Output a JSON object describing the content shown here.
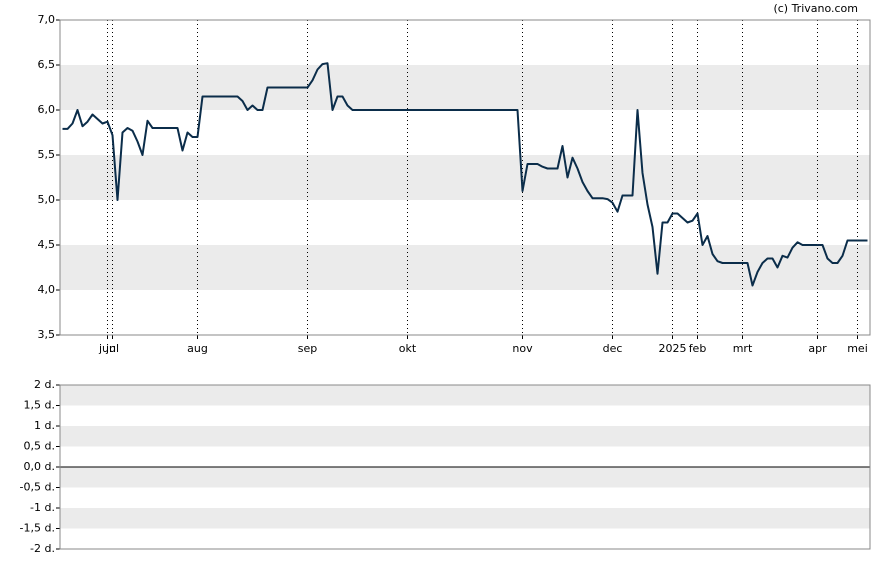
{
  "chart_data": [
    {
      "type": "line",
      "source": "(c) Trivano.com",
      "categories": [
        null,
        null,
        null,
        null,
        null,
        null,
        null,
        null,
        null,
        "jun",
        "jul",
        null,
        null,
        null,
        null,
        null,
        null,
        null,
        null,
        null,
        null,
        null,
        null,
        null,
        null,
        null,
        null,
        "aug",
        null,
        null,
        null,
        null,
        null,
        null,
        null,
        null,
        null,
        null,
        null,
        null,
        null,
        null,
        null,
        null,
        null,
        null,
        null,
        null,
        null,
        "sep",
        null,
        null,
        null,
        null,
        null,
        null,
        null,
        null,
        null,
        null,
        null,
        null,
        null,
        null,
        null,
        null,
        null,
        null,
        null,
        "okt",
        null,
        null,
        null,
        null,
        null,
        null,
        null,
        null,
        null,
        null,
        null,
        null,
        null,
        null,
        null,
        null,
        null,
        null,
        null,
        null,
        null,
        null,
        "nov",
        null,
        null,
        null,
        null,
        null,
        null,
        null,
        null,
        null,
        null,
        null,
        null,
        null,
        null,
        null,
        null,
        null,
        "dec",
        null,
        null,
        null,
        null,
        null,
        null,
        null,
        null,
        null,
        null,
        null,
        "2025",
        null,
        null,
        null,
        null,
        "feb",
        null,
        null,
        null,
        null,
        null,
        null,
        null,
        null,
        "mrt",
        null,
        null,
        null,
        null,
        null,
        null,
        null,
        null,
        null,
        null,
        null,
        null,
        null,
        null,
        "apr",
        null,
        null,
        null,
        null,
        null,
        null,
        null,
        "mei",
        null,
        null
      ],
      "series": [
        {
          "color": "#0b2d4a",
          "values": [
            5.79,
            5.79,
            5.85,
            6.0,
            5.82,
            5.87,
            5.95,
            5.9,
            5.85,
            5.87,
            5.72,
            5.0,
            5.75,
            5.8,
            5.77,
            5.65,
            5.5,
            5.88,
            5.8,
            5.8,
            5.8,
            5.8,
            5.8,
            5.8,
            5.55,
            5.75,
            5.7,
            5.7,
            6.15,
            6.15,
            6.15,
            6.15,
            6.15,
            6.15,
            6.15,
            6.15,
            6.1,
            6.0,
            6.05,
            6.0,
            6.0,
            6.25,
            6.25,
            6.25,
            6.25,
            6.25,
            6.25,
            6.25,
            6.25,
            6.25,
            6.33,
            6.45,
            6.51,
            6.52,
            6.0,
            6.15,
            6.15,
            6.05,
            6.0,
            6.0,
            6.0,
            6.0,
            6.0,
            6.0,
            6.0,
            6.0,
            6.0,
            6.0,
            6.0,
            6.0,
            6.0,
            6.0,
            6.0,
            6.0,
            6.0,
            6.0,
            6.0,
            6.0,
            6.0,
            6.0,
            6.0,
            6.0,
            6.0,
            6.0,
            6.0,
            6.0,
            6.0,
            6.0,
            6.0,
            6.0,
            6.0,
            6.0,
            5.1,
            5.4,
            5.4,
            5.4,
            5.37,
            5.35,
            5.35,
            5.35,
            5.6,
            5.25,
            5.47,
            5.35,
            5.2,
            5.1,
            5.02,
            5.02,
            5.02,
            5.01,
            4.97,
            4.87,
            5.05,
            5.05,
            5.05,
            6.0,
            5.3,
            4.95,
            4.7,
            4.18,
            4.75,
            4.75,
            4.85,
            4.85,
            4.8,
            4.75,
            4.77,
            4.85,
            4.5,
            4.6,
            4.4,
            4.32,
            4.3,
            4.3,
            4.3,
            4.3,
            4.3,
            4.3,
            4.05,
            4.2,
            4.3,
            4.35,
            4.35,
            4.25,
            4.38,
            4.36,
            4.47,
            4.53,
            4.5,
            4.5,
            4.5,
            4.5,
            4.5,
            4.35,
            4.3,
            4.3,
            4.38,
            4.55,
            4.55,
            4.55,
            4.55,
            4.55
          ]
        }
      ],
      "ylim": [
        3.5,
        7.0
      ],
      "yticks": [
        {
          "value": 3.5,
          "label": "3,5"
        },
        {
          "value": 4.0,
          "label": "4,0"
        },
        {
          "value": 4.5,
          "label": "4,5"
        },
        {
          "value": 5.0,
          "label": "5,0"
        },
        {
          "value": 5.5,
          "label": "5,5"
        },
        {
          "value": 6.0,
          "label": "6,0"
        },
        {
          "value": 6.5,
          "label": "6,5"
        },
        {
          "value": 7.0,
          "label": "7,0"
        }
      ],
      "grid": true
    },
    {
      "type": "line",
      "ylim": [
        -2,
        2
      ],
      "yticks": [
        {
          "value": -2,
          "label": "-2 d."
        },
        {
          "value": -1.5,
          "label": "-1,5 d."
        },
        {
          "value": -1,
          "label": "-1 d."
        },
        {
          "value": -0.5,
          "label": "-0,5 d."
        },
        {
          "value": 0,
          "label": "0,0 d."
        },
        {
          "value": 0.5,
          "label": "0,5 d."
        },
        {
          "value": 1,
          "label": "1 d."
        },
        {
          "value": 1.5,
          "label": "1,5 d."
        },
        {
          "value": 2,
          "label": "2 d."
        }
      ],
      "grid": true
    }
  ]
}
